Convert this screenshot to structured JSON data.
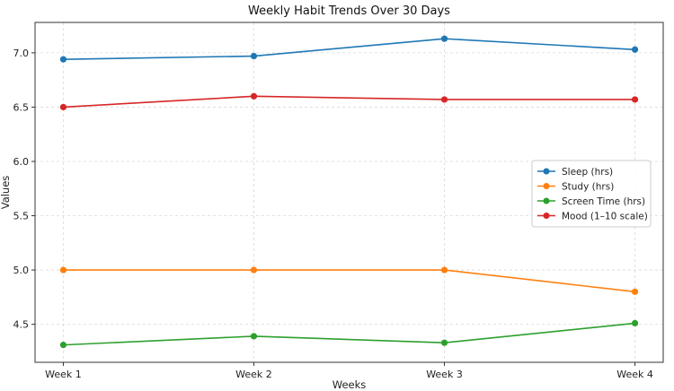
{
  "chart_data": {
    "type": "line",
    "title": "Weekly Habit Trends Over 30 Days",
    "xlabel": "Weeks",
    "ylabel": "Values",
    "categories": [
      "Week 1",
      "Week 2",
      "Week 3",
      "Week 4"
    ],
    "ylim": [
      4.15,
      7.28
    ],
    "yticks": [
      4.5,
      5.0,
      5.5,
      6.0,
      6.5,
      7.0
    ],
    "ytick_labels": [
      "4.5",
      "5.0",
      "5.5",
      "6.0",
      "6.5",
      "7.0"
    ],
    "grid": true,
    "legend_position": "center-right",
    "series": [
      {
        "name": "Sleep (hrs)",
        "color": "#1f77b4",
        "values": [
          6.94,
          6.97,
          7.13,
          7.03
        ]
      },
      {
        "name": "Study (hrs)",
        "color": "#ff7f0e",
        "values": [
          5.0,
          5.0,
          5.0,
          4.8
        ]
      },
      {
        "name": "Screen Time (hrs)",
        "color": "#2ca02c",
        "values": [
          4.31,
          4.39,
          4.33,
          4.51
        ]
      },
      {
        "name": "Mood (1–10 scale)",
        "color": "#d62728",
        "values": [
          6.5,
          6.6,
          6.57,
          6.57
        ]
      }
    ]
  }
}
